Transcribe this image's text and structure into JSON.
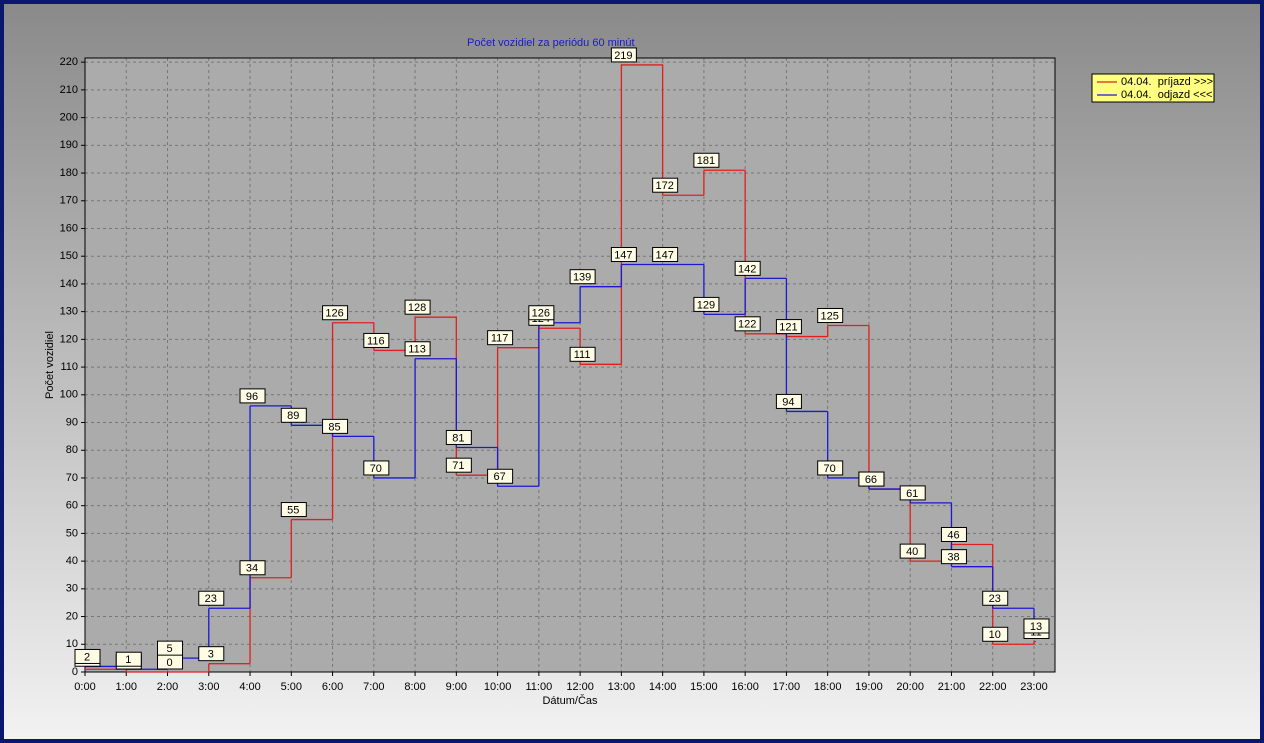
{
  "chart_data": {
    "type": "step-line",
    "title": "Počet vozidiel za periódu 60 minút",
    "x_label": "Dátum/Čas",
    "y_label": "Počet vozidiel",
    "categories": [
      "0:00",
      "1:00",
      "2:00",
      "3:00",
      "4:00",
      "5:00",
      "6:00",
      "7:00",
      "8:00",
      "9:00",
      "10:00",
      "11:00",
      "12:00",
      "13:00",
      "14:00",
      "15:00",
      "16:00",
      "17:00",
      "18:00",
      "19:00",
      "20:00",
      "21:00",
      "22:00",
      "23:00"
    ],
    "series": [
      {
        "name": "04.04.  príjazd >>>",
        "color": "#e02020",
        "values": [
          1,
          0,
          0,
          3,
          34,
          55,
          126,
          116,
          128,
          71,
          117,
          124,
          111,
          219,
          172,
          181,
          122,
          121,
          125,
          66,
          40,
          46,
          10,
          11
        ]
      },
      {
        "name": "04.04.  odjazd <<<",
        "color": "#1a1ad0",
        "values": [
          2,
          1,
          5,
          23,
          96,
          89,
          85,
          70,
          113,
          81,
          67,
          126,
          139,
          147,
          147,
          129,
          142,
          94,
          70,
          66,
          61,
          38,
          23,
          13
        ]
      }
    ],
    "ylim": [
      0,
      221.5
    ],
    "yticks": [
      0,
      10,
      20,
      30,
      40,
      50,
      60,
      70,
      80,
      90,
      100,
      110,
      120,
      130,
      140,
      150,
      160,
      170,
      180,
      190,
      200,
      210,
      220
    ],
    "grid": true,
    "legend": "top-right"
  }
}
